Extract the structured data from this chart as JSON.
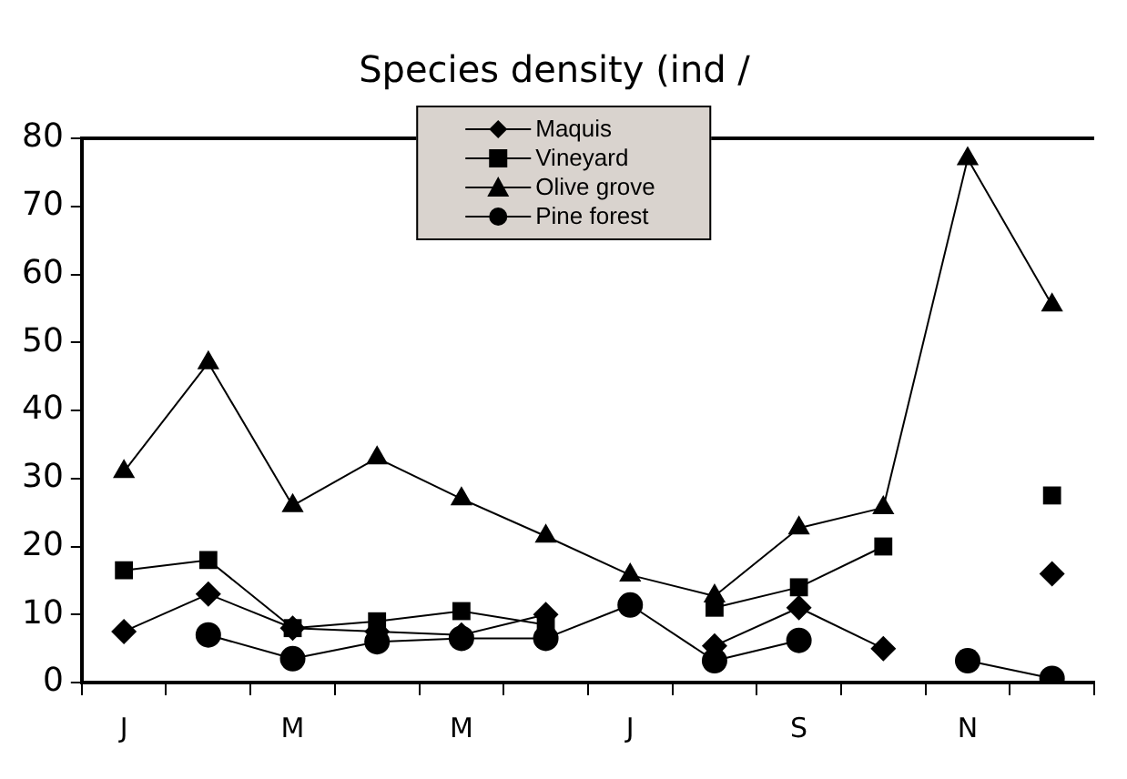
{
  "chart_data": {
    "type": "line",
    "title": "Species density (ind /",
    "categories": [
      "J",
      null,
      "M",
      null,
      "M",
      null,
      "J",
      null,
      "S",
      null,
      "N",
      null
    ],
    "series": [
      {
        "name": "Maquis",
        "color": "#000000",
        "marker": "diamond",
        "values": [
          7.5,
          13,
          8,
          7.5,
          7,
          10,
          null,
          5.4,
          11,
          5,
          null,
          16
        ]
      },
      {
        "name": "Vineyard",
        "color": "#000000",
        "marker": "square",
        "values": [
          16.5,
          18,
          8,
          9,
          10.5,
          8.5,
          null,
          11,
          14,
          20,
          null,
          27.5
        ]
      },
      {
        "name": "Olive grove",
        "color": "#000000",
        "marker": "triangle",
        "values": [
          31,
          47,
          26,
          33,
          27,
          21.5,
          15.8,
          12.7,
          22.7,
          25.7,
          77,
          55.5
        ]
      },
      {
        "name": "Pine forest",
        "color": "#000000",
        "marker": "circle",
        "values": [
          null,
          7,
          3.5,
          6,
          6.5,
          6.5,
          11.4,
          3.2,
          6.2,
          null,
          3.2,
          0.6
        ]
      }
    ],
    "ylim": [
      0,
      80
    ],
    "yticks": [
      0,
      10,
      20,
      30,
      40,
      50,
      60,
      70,
      80
    ],
    "grid": false,
    "legend": "top",
    "line_style": "solid"
  }
}
